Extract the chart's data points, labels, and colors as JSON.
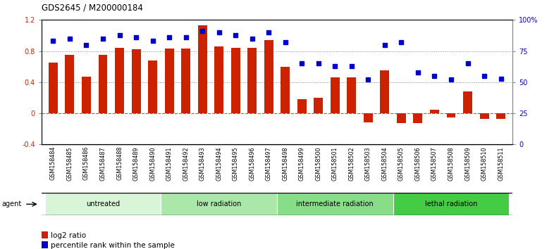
{
  "title": "GDS2645 / M200000184",
  "samples": [
    "GSM158484",
    "GSM158485",
    "GSM158486",
    "GSM158487",
    "GSM158488",
    "GSM158489",
    "GSM158490",
    "GSM158491",
    "GSM158492",
    "GSM158493",
    "GSM158494",
    "GSM158495",
    "GSM158496",
    "GSM158497",
    "GSM158498",
    "GSM158499",
    "GSM158500",
    "GSM158501",
    "GSM158502",
    "GSM158503",
    "GSM158504",
    "GSM158505",
    "GSM158506",
    "GSM158507",
    "GSM158508",
    "GSM158509",
    "GSM158510",
    "GSM158511"
  ],
  "log2_ratio": [
    0.65,
    0.75,
    0.47,
    0.75,
    0.84,
    0.82,
    0.68,
    0.83,
    0.83,
    1.13,
    0.86,
    0.84,
    0.84,
    0.94,
    0.6,
    0.18,
    0.2,
    0.46,
    0.46,
    -0.12,
    0.55,
    -0.13,
    -0.13,
    0.05,
    -0.05,
    0.28,
    -0.07,
    -0.07
  ],
  "percentile_rank": [
    83,
    85,
    80,
    85,
    88,
    86,
    83,
    86,
    86,
    91,
    90,
    88,
    85,
    90,
    82,
    65,
    65,
    63,
    63,
    52,
    80,
    82,
    58,
    55,
    52,
    65,
    55,
    53
  ],
  "groups": [
    {
      "label": "untreated",
      "start": 0,
      "end": 6,
      "color": "#d8f5d8"
    },
    {
      "label": "low radiation",
      "start": 7,
      "end": 13,
      "color": "#aae8aa"
    },
    {
      "label": "intermediate radiation",
      "start": 14,
      "end": 20,
      "color": "#88dd88"
    },
    {
      "label": "lethal radiation",
      "start": 21,
      "end": 27,
      "color": "#44cc44"
    }
  ],
  "bar_color": "#cc2200",
  "dot_color": "#0000cc",
  "ylim_left": [
    -0.4,
    1.2
  ],
  "ylim_right": [
    0,
    100
  ],
  "yticks_left": [
    -0.4,
    0,
    0.4,
    0.8,
    1.2
  ],
  "yticks_right": [
    0,
    25,
    50,
    75,
    100
  ],
  "ytick_labels_right": [
    "0",
    "25",
    "50",
    "75",
    "100%"
  ],
  "hlines_dotted": [
    0.4,
    0.8
  ],
  "background_color": "#ffffff",
  "plot_bg_color": "#ffffff",
  "xtick_bg_color": "#d8d8d8",
  "agent_label": "agent",
  "legend_bar_label": "log2 ratio",
  "legend_dot_label": "percentile rank within the sample",
  "zero_line_color": "#dd4444",
  "dot_hline_color": "#aaaaaa"
}
